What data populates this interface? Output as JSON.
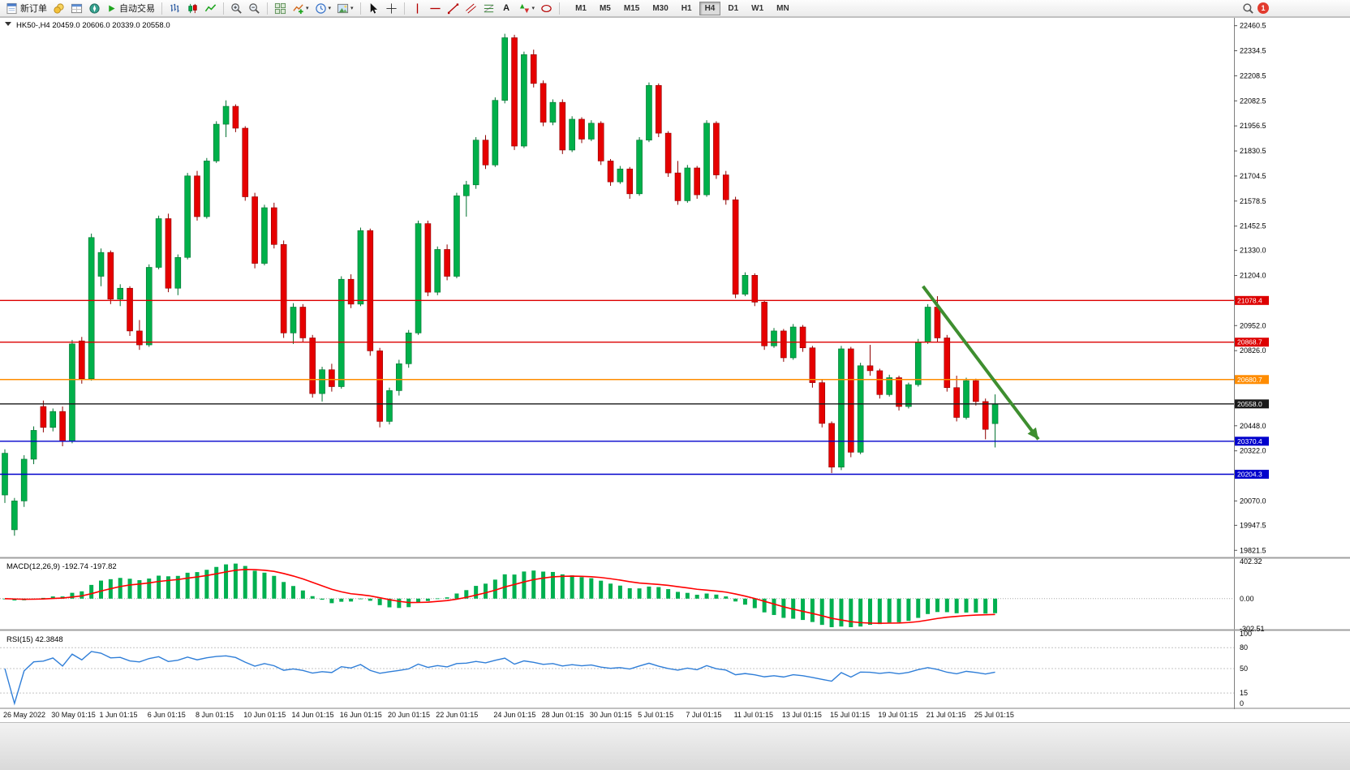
{
  "toolbar": {
    "new_order_label": "新订单",
    "autotrade_label": "自动交易",
    "text_tool_label": "A",
    "timeframes": [
      "M1",
      "M5",
      "M15",
      "M30",
      "H1",
      "H4",
      "D1",
      "W1",
      "MN"
    ],
    "active_timeframe": "H4",
    "notification_count": "1"
  },
  "chart": {
    "header": "HK50-,H4  20459.0 20606.0 20339.0 20558.0",
    "macd_header": "MACD(12,26,9) -192.74 -197.82",
    "rsi_header": "RSI(15) 42.3848"
  },
  "chart_data": {
    "type": "candlestick",
    "symbol": "HK50-",
    "timeframe": "H4",
    "last_bar": {
      "open": 20459.0,
      "high": 20606.0,
      "low": 20339.0,
      "close": 20558.0
    },
    "up_color": "#00b04a",
    "down_color": "#e60000",
    "price_axis": {
      "min": 19790,
      "max": 22500,
      "ticks": [
        22460.5,
        22334.5,
        22208.5,
        22082.5,
        21956.5,
        21830.5,
        21704.5,
        21578.5,
        21452.5,
        21330.0,
        21204.0,
        20952.0,
        20826.0,
        20448.0,
        20322.0,
        20070.0,
        19947.5,
        19821.5
      ]
    },
    "horizontal_lines": [
      {
        "price": 21078.4,
        "color": "#dd0000"
      },
      {
        "price": 20868.7,
        "color": "#dd0000"
      },
      {
        "price": 20680.7,
        "color": "#ff8c00"
      },
      {
        "price": 20558.0,
        "color": "#1a1a1a"
      },
      {
        "price": 20370.4,
        "color": "#0000cc"
      },
      {
        "price": 20204.3,
        "color": "#0000cc"
      }
    ],
    "trend_arrow": {
      "from_index": 95.5,
      "from_price": 21150,
      "to_index": 107.5,
      "to_price": 20380,
      "color": "#3e8e2f"
    },
    "time_labels": [
      {
        "i": 0,
        "label": "26 May 2022"
      },
      {
        "i": 5,
        "label": "30 May 01:15"
      },
      {
        "i": 10,
        "label": "1 Jun 01:15"
      },
      {
        "i": 15,
        "label": "6 Jun 01:15"
      },
      {
        "i": 20,
        "label": "8 Jun 01:15"
      },
      {
        "i": 25,
        "label": "10 Jun 01:15"
      },
      {
        "i": 30,
        "label": "14 Jun 01:15"
      },
      {
        "i": 35,
        "label": "16 Jun 01:15"
      },
      {
        "i": 40,
        "label": "20 Jun 01:15"
      },
      {
        "i": 45,
        "label": "22 Jun 01:15"
      },
      {
        "i": 51,
        "label": "24 Jun 01:15"
      },
      {
        "i": 56,
        "label": "28 Jun 01:15"
      },
      {
        "i": 61,
        "label": "30 Jun 01:15"
      },
      {
        "i": 66,
        "label": "5 Jul 01:15"
      },
      {
        "i": 71,
        "label": "7 Jul 01:15"
      },
      {
        "i": 76,
        "label": "11 Jul 01:15"
      },
      {
        "i": 81,
        "label": "13 Jul 01:15"
      },
      {
        "i": 86,
        "label": "15 Jul 01:15"
      },
      {
        "i": 91,
        "label": "19 Jul 01:15"
      },
      {
        "i": 96,
        "label": "21 Jul 01:15"
      },
      {
        "i": 101,
        "label": "25 Jul 01:15"
      }
    ],
    "candles": [
      [
        20100,
        20330,
        20060,
        20310
      ],
      [
        19925,
        20085,
        19895,
        20070
      ],
      [
        20070,
        20300,
        20040,
        20280
      ],
      [
        20280,
        20445,
        20255,
        20425
      ],
      [
        20545,
        20575,
        20415,
        20440
      ],
      [
        20440,
        20535,
        20420,
        20520
      ],
      [
        20520,
        20545,
        20345,
        20370
      ],
      [
        20370,
        20880,
        20360,
        20860
      ],
      [
        20875,
        20895,
        20660,
        20685
      ],
      [
        20685,
        21415,
        20675,
        21395
      ],
      [
        21200,
        21340,
        21150,
        21320
      ],
      [
        21320,
        21330,
        21060,
        21085
      ],
      [
        21085,
        21160,
        21050,
        21140
      ],
      [
        21140,
        21150,
        20900,
        20925
      ],
      [
        20925,
        20980,
        20830,
        20855
      ],
      [
        20855,
        21260,
        20845,
        21245
      ],
      [
        21245,
        21505,
        21235,
        21490
      ],
      [
        21490,
        21515,
        21120,
        21140
      ],
      [
        21140,
        21310,
        21105,
        21295
      ],
      [
        21295,
        21720,
        21285,
        21705
      ],
      [
        21705,
        21730,
        21480,
        21500
      ],
      [
        21500,
        21795,
        21490,
        21780
      ],
      [
        21780,
        21980,
        21770,
        21965
      ],
      [
        21965,
        22085,
        21900,
        22055
      ],
      [
        22055,
        22065,
        21925,
        21945
      ],
      [
        21945,
        21955,
        21580,
        21600
      ],
      [
        21600,
        21620,
        21240,
        21265
      ],
      [
        21265,
        21560,
        21255,
        21545
      ],
      [
        21545,
        21570,
        21340,
        21360
      ],
      [
        21360,
        21380,
        20890,
        20915
      ],
      [
        20915,
        21065,
        20860,
        21045
      ],
      [
        21045,
        21060,
        20870,
        20890
      ],
      [
        20890,
        20905,
        20590,
        20610
      ],
      [
        20610,
        20745,
        20570,
        20730
      ],
      [
        20730,
        20760,
        20620,
        20645
      ],
      [
        20645,
        21200,
        20635,
        21185
      ],
      [
        21185,
        21210,
        21040,
        21060
      ],
      [
        21060,
        21445,
        21050,
        21430
      ],
      [
        21430,
        21440,
        20800,
        20825
      ],
      [
        20825,
        20840,
        20440,
        20470
      ],
      [
        20470,
        20640,
        20455,
        20625
      ],
      [
        20625,
        20780,
        20600,
        20760
      ],
      [
        20760,
        20930,
        20740,
        20915
      ],
      [
        20915,
        21480,
        20905,
        21465
      ],
      [
        21465,
        21480,
        21100,
        21120
      ],
      [
        21120,
        21350,
        21105,
        21335
      ],
      [
        21335,
        21360,
        21180,
        21200
      ],
      [
        21200,
        21620,
        21190,
        21605
      ],
      [
        21605,
        21680,
        21500,
        21660
      ],
      [
        21660,
        21900,
        21640,
        21885
      ],
      [
        21885,
        21910,
        21740,
        21760
      ],
      [
        21760,
        22100,
        21750,
        22085
      ],
      [
        22085,
        22420,
        22070,
        22400
      ],
      [
        22400,
        22415,
        21835,
        21855
      ],
      [
        21855,
        22330,
        21845,
        22315
      ],
      [
        22315,
        22340,
        22150,
        22170
      ],
      [
        22170,
        22185,
        21955,
        21975
      ],
      [
        21975,
        22090,
        21960,
        22075
      ],
      [
        22075,
        22090,
        21815,
        21835
      ],
      [
        21835,
        22005,
        21825,
        21990
      ],
      [
        21990,
        22000,
        21870,
        21890
      ],
      [
        21890,
        21985,
        21880,
        21970
      ],
      [
        21970,
        21980,
        21760,
        21780
      ],
      [
        21780,
        21790,
        21655,
        21675
      ],
      [
        21675,
        21755,
        21665,
        21740
      ],
      [
        21740,
        21750,
        21590,
        21615
      ],
      [
        21615,
        21900,
        21605,
        21885
      ],
      [
        21885,
        22175,
        21875,
        22160
      ],
      [
        22160,
        22170,
        21900,
        21920
      ],
      [
        21920,
        21930,
        21700,
        21720
      ],
      [
        21720,
        21780,
        21560,
        21580
      ],
      [
        21580,
        21760,
        21570,
        21745
      ],
      [
        21745,
        21755,
        21590,
        21610
      ],
      [
        21610,
        21985,
        21600,
        21970
      ],
      [
        21970,
        21980,
        21690,
        21710
      ],
      [
        21710,
        21730,
        21560,
        21585
      ],
      [
        21585,
        21600,
        21090,
        21110
      ],
      [
        21110,
        21220,
        21100,
        21205
      ],
      [
        21205,
        21215,
        21050,
        21070
      ],
      [
        21070,
        21080,
        20830,
        20850
      ],
      [
        20850,
        20940,
        20840,
        20925
      ],
      [
        20925,
        20935,
        20770,
        20790
      ],
      [
        20790,
        20960,
        20780,
        20945
      ],
      [
        20945,
        20955,
        20820,
        20840
      ],
      [
        20840,
        20850,
        20640,
        20665
      ],
      [
        20665,
        20680,
        20440,
        20460
      ],
      [
        20460,
        20470,
        20210,
        20240
      ],
      [
        20240,
        20850,
        20225,
        20835
      ],
      [
        20835,
        20845,
        20290,
        20315
      ],
      [
        20315,
        20765,
        20305,
        20750
      ],
      [
        20750,
        20855,
        20700,
        20725
      ],
      [
        20725,
        20735,
        20585,
        20605
      ],
      [
        20605,
        20705,
        20595,
        20690
      ],
      [
        20690,
        20700,
        20525,
        20545
      ],
      [
        20545,
        20665,
        20535,
        20655
      ],
      [
        20655,
        20885,
        20645,
        20870
      ],
      [
        20870,
        21060,
        20860,
        21045
      ],
      [
        21045,
        21100,
        20870,
        20890
      ],
      [
        20890,
        20905,
        20620,
        20640
      ],
      [
        20640,
        20700,
        20470,
        20490
      ],
      [
        20490,
        20690,
        20480,
        20675
      ],
      [
        20675,
        20685,
        20550,
        20570
      ],
      [
        20570,
        20585,
        20380,
        20430
      ],
      [
        20459,
        20606,
        20339,
        20558
      ]
    ],
    "indicators": [
      {
        "type": "MACD",
        "params": [
          12,
          26,
          9
        ],
        "main_value": -192.74,
        "signal_value": -197.82,
        "axis_max": 402.32,
        "axis_zero": 0.0,
        "axis_min": -302.51,
        "histogram_color": "#00b050",
        "signal_color": "#ff0000"
      },
      {
        "type": "RSI",
        "params": [
          15
        ],
        "value": 42.3848,
        "levels": [
          100,
          80,
          50,
          15,
          0
        ],
        "line_color": "#2f7ed8"
      }
    ]
  }
}
